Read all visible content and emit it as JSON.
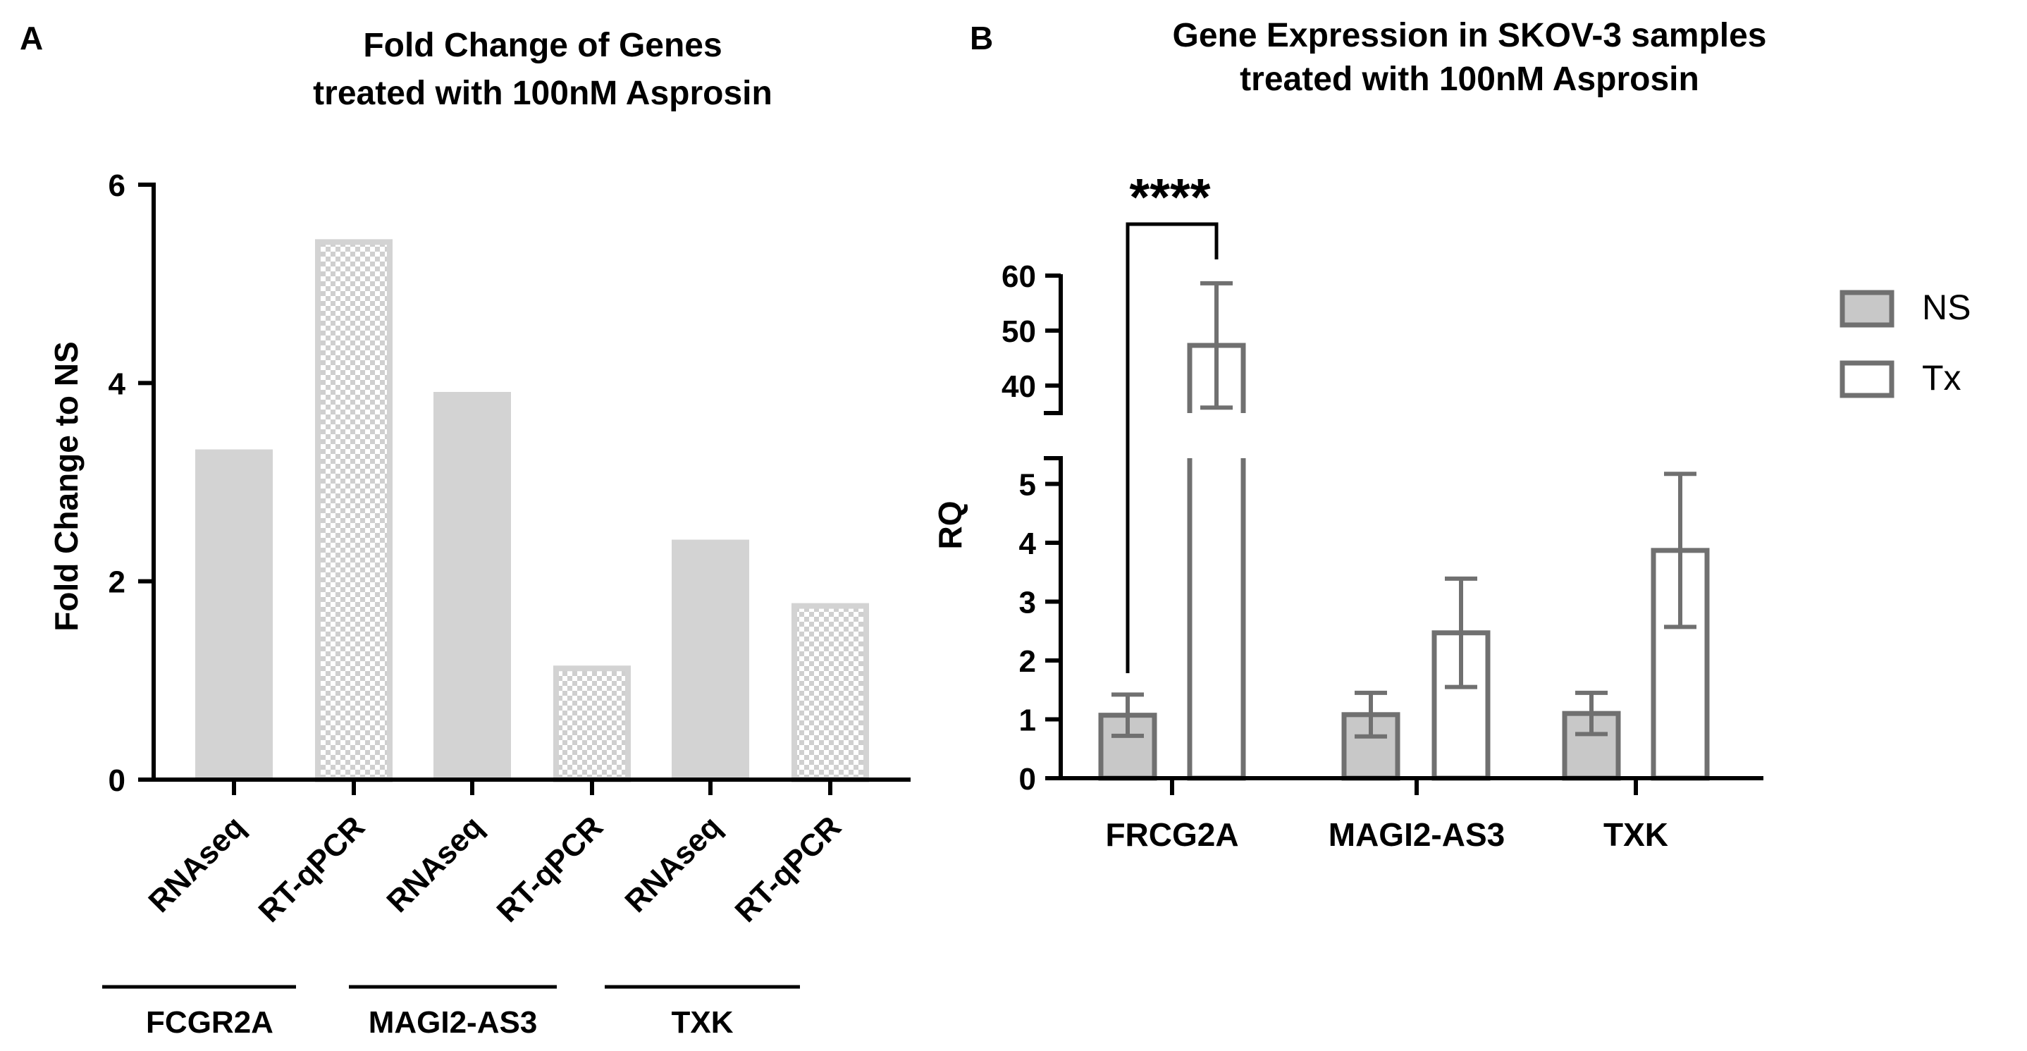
{
  "chart_data": [
    {
      "panel": "A",
      "type": "bar",
      "title_lines": [
        "Fold Change of Genes",
        "treated with 100nM Asprosin"
      ],
      "ylabel": "Fold Change to NS",
      "xlabel": "",
      "ylim": [
        0,
        6
      ],
      "yticks": [
        0,
        2,
        4,
        6
      ],
      "categories": [
        "RNAseq",
        "RT-qPCR",
        "RNAseq",
        "RT-qPCR",
        "RNAseq",
        "RT-qPCR"
      ],
      "values": [
        3.33,
        5.45,
        3.91,
        1.15,
        2.42,
        1.78
      ],
      "patterns": [
        "solid",
        "checker",
        "solid",
        "checker",
        "solid",
        "checker"
      ],
      "groups": [
        "FCGR2A",
        "MAGI2-AS3",
        "TXK"
      ],
      "colors": {
        "solid": "#d3d3d3",
        "checker": "#cfcfcf"
      }
    },
    {
      "panel": "B",
      "type": "bar",
      "title_lines": [
        "Gene Expression in SKOV-3 samples",
        "treated with 100nM Asprosin"
      ],
      "ylabel": "RQ",
      "xlabel": "",
      "categories": [
        "FRCG2A",
        "MAGI2-AS3",
        "TXK"
      ],
      "series": [
        {
          "name": "NS",
          "values": [
            1.07,
            1.08,
            1.1
          ],
          "err": [
            0.35,
            0.37,
            0.35
          ],
          "fill": "#c8c8c8"
        },
        {
          "name": "Tx",
          "values": [
            47.3,
            2.47,
            3.87
          ],
          "err": [
            11.3,
            0.92,
            1.3
          ],
          "fill": "#ffffff"
        }
      ],
      "axis_break": true,
      "lower_ylim": [
        0,
        5.5
      ],
      "lower_yticks": [
        0,
        1,
        2,
        3,
        4,
        5
      ],
      "upper_ylim": [
        35,
        60
      ],
      "upper_yticks": [
        40,
        50,
        60
      ],
      "significance": "****",
      "legend_position": "top-right",
      "colors": {
        "edge": "#707070",
        "axis": "#000000"
      }
    }
  ]
}
